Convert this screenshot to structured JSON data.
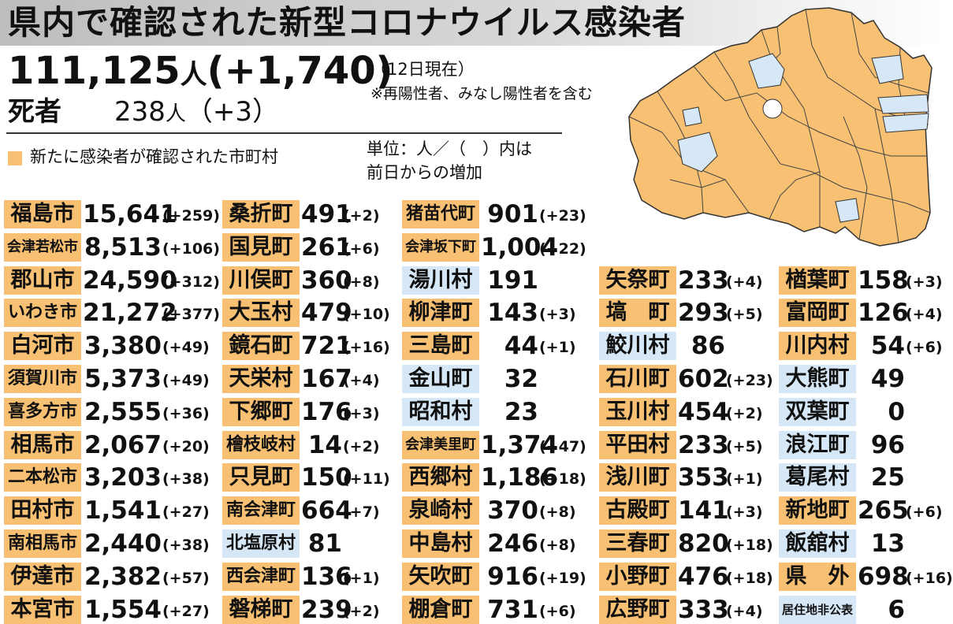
{
  "header": {
    "title": "県内で確認された新型コロナウイルス感染者",
    "total_count": "111,125",
    "total_unit": "人",
    "total_delta": "(+1,740)",
    "as_of": "（12日現在）",
    "note": "※再陽性者、みなし陽性者を含む",
    "deaths_label": "死者",
    "deaths_count": "238",
    "deaths_unit": "人",
    "deaths_delta": "（+3）"
  },
  "legend": {
    "label": "新たに感染者が確認された市町村",
    "color": "#f7c073",
    "unit_note": "単位：人／（　）内は\n前日からの増加"
  },
  "colors": {
    "new_case": "#f7c073",
    "no_new_case": "#d6e8f7"
  },
  "columns": [
    {
      "rows": [
        {
          "name": "福島市",
          "count": "15,641",
          "delta": "(+259)",
          "highlight": "orange"
        },
        {
          "name": "会津若松市",
          "count": "8,513",
          "delta": "(+106)",
          "highlight": "orange"
        },
        {
          "name": "郡山市",
          "count": "24,590",
          "delta": "(+312)",
          "highlight": "orange"
        },
        {
          "name": "いわき市",
          "count": "21,272",
          "delta": "(+377)",
          "highlight": "orange"
        },
        {
          "name": "白河市",
          "count": "3,380",
          "delta": "(+49)",
          "highlight": "orange"
        },
        {
          "name": "須賀川市",
          "count": "5,373",
          "delta": "(+49)",
          "highlight": "orange"
        },
        {
          "name": "喜多方市",
          "count": "2,555",
          "delta": "(+36)",
          "highlight": "orange"
        },
        {
          "name": "相馬市",
          "count": "2,067",
          "delta": "(+20)",
          "highlight": "orange"
        },
        {
          "name": "二本松市",
          "count": "3,203",
          "delta": "(+38)",
          "highlight": "orange"
        },
        {
          "name": "田村市",
          "count": "1,541",
          "delta": "(+27)",
          "highlight": "orange"
        },
        {
          "name": "南相馬市",
          "count": "2,440",
          "delta": "(+38)",
          "highlight": "orange"
        },
        {
          "name": "伊達市",
          "count": "2,382",
          "delta": "(+57)",
          "highlight": "orange"
        },
        {
          "name": "本宮市",
          "count": "1,554",
          "delta": "(+27)",
          "highlight": "orange"
        }
      ]
    },
    {
      "rows": [
        {
          "name": "桑折町",
          "count": "491",
          "delta": "(+2)",
          "highlight": "orange"
        },
        {
          "name": "国見町",
          "count": "261",
          "delta": "(+6)",
          "highlight": "orange"
        },
        {
          "name": "川俣町",
          "count": "360",
          "delta": "(+8)",
          "highlight": "orange"
        },
        {
          "name": "大玉村",
          "count": "479",
          "delta": "(+10)",
          "highlight": "orange"
        },
        {
          "name": "鏡石町",
          "count": "721",
          "delta": "(+16)",
          "highlight": "orange"
        },
        {
          "name": "天栄村",
          "count": "167",
          "delta": "(+4)",
          "highlight": "orange"
        },
        {
          "name": "下郷町",
          "count": "176",
          "delta": "(+3)",
          "highlight": "orange"
        },
        {
          "name": "檜枝岐村",
          "count": "14",
          "delta": "(+2)",
          "highlight": "orange"
        },
        {
          "name": "只見町",
          "count": "150",
          "delta": "(+11)",
          "highlight": "orange"
        },
        {
          "name": "南会津町",
          "count": "664",
          "delta": "(+7)",
          "highlight": "orange"
        },
        {
          "name": "北塩原村",
          "count": "81",
          "delta": "",
          "highlight": "blue"
        },
        {
          "name": "西会津町",
          "count": "136",
          "delta": "(+1)",
          "highlight": "orange"
        },
        {
          "name": "磐梯町",
          "count": "239",
          "delta": "(+2)",
          "highlight": "orange"
        }
      ]
    },
    {
      "rows": [
        {
          "name": "猪苗代町",
          "count": "901",
          "delta": "(+23)",
          "highlight": "orange"
        },
        {
          "name": "会津坂下町",
          "count": "1,004",
          "delta": "(+22)",
          "highlight": "orange"
        },
        {
          "name": "湯川村",
          "count": "191",
          "delta": "",
          "highlight": "blue"
        },
        {
          "name": "柳津町",
          "count": "143",
          "delta": "(+3)",
          "highlight": "orange"
        },
        {
          "name": "三島町",
          "count": "44",
          "delta": "(+1)",
          "highlight": "orange"
        },
        {
          "name": "金山町",
          "count": "32",
          "delta": "",
          "highlight": "blue"
        },
        {
          "name": "昭和村",
          "count": "23",
          "delta": "",
          "highlight": "blue"
        },
        {
          "name": "会津美里町",
          "count": "1,374",
          "delta": "(+47)",
          "highlight": "orange"
        },
        {
          "name": "西郷村",
          "count": "1,186",
          "delta": "(+18)",
          "highlight": "orange"
        },
        {
          "name": "泉崎村",
          "count": "370",
          "delta": "(+8)",
          "highlight": "orange"
        },
        {
          "name": "中島村",
          "count": "246",
          "delta": "(+8)",
          "highlight": "orange"
        },
        {
          "name": "矢吹町",
          "count": "916",
          "delta": "(+19)",
          "highlight": "orange"
        },
        {
          "name": "棚倉町",
          "count": "731",
          "delta": "(+6)",
          "highlight": "orange"
        }
      ]
    },
    {
      "rows": [
        {
          "name": "矢祭町",
          "count": "233",
          "delta": "(+4)",
          "highlight": "orange"
        },
        {
          "name": "塙　町",
          "count": "293",
          "delta": "(+5)",
          "highlight": "orange"
        },
        {
          "name": "鮫川村",
          "count": "86",
          "delta": "",
          "highlight": "blue"
        },
        {
          "name": "石川町",
          "count": "602",
          "delta": "(+23)",
          "highlight": "orange"
        },
        {
          "name": "玉川村",
          "count": "454",
          "delta": "(+2)",
          "highlight": "orange"
        },
        {
          "name": "平田村",
          "count": "233",
          "delta": "(+5)",
          "highlight": "orange"
        },
        {
          "name": "浅川町",
          "count": "353",
          "delta": "(+1)",
          "highlight": "orange"
        },
        {
          "name": "古殿町",
          "count": "141",
          "delta": "(+3)",
          "highlight": "orange"
        },
        {
          "name": "三春町",
          "count": "820",
          "delta": "(+18)",
          "highlight": "orange"
        },
        {
          "name": "小野町",
          "count": "476",
          "delta": "(+18)",
          "highlight": "orange"
        },
        {
          "name": "広野町",
          "count": "333",
          "delta": "(+4)",
          "highlight": "orange"
        }
      ]
    },
    {
      "rows": [
        {
          "name": "楢葉町",
          "count": "158",
          "delta": "(+3)",
          "highlight": "orange"
        },
        {
          "name": "富岡町",
          "count": "126",
          "delta": "(+4)",
          "highlight": "orange"
        },
        {
          "name": "川内村",
          "count": "54",
          "delta": "(+6)",
          "highlight": "orange"
        },
        {
          "name": "大熊町",
          "count": "49",
          "delta": "",
          "highlight": "blue"
        },
        {
          "name": "双葉町",
          "count": "0",
          "delta": "",
          "highlight": "blue"
        },
        {
          "name": "浪江町",
          "count": "96",
          "delta": "",
          "highlight": "blue"
        },
        {
          "name": "葛尾村",
          "count": "25",
          "delta": "",
          "highlight": "blue"
        },
        {
          "name": "新地町",
          "count": "265",
          "delta": "(+6)",
          "highlight": "orange"
        },
        {
          "name": "飯舘村",
          "count": "13",
          "delta": "",
          "highlight": "blue"
        },
        {
          "name": "県　外",
          "count": "698",
          "delta": "(+16)",
          "highlight": "orange"
        },
        {
          "name": "居住地非公表",
          "count": "6",
          "delta": "",
          "highlight": "blue"
        }
      ]
    }
  ]
}
